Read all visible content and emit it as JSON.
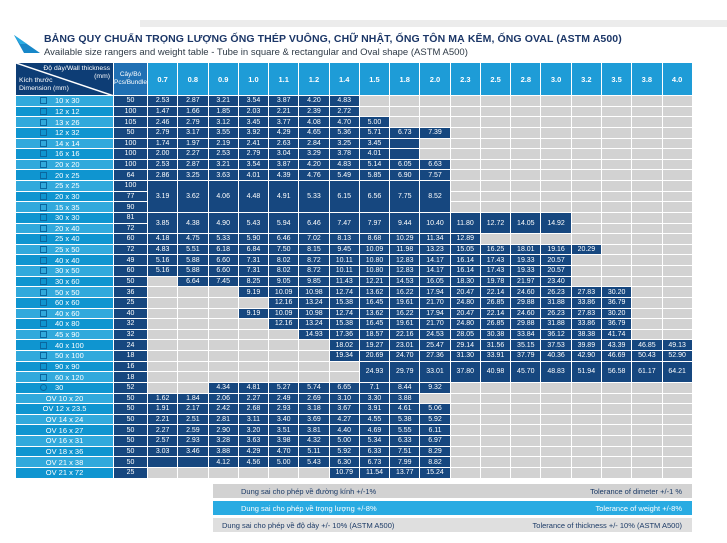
{
  "page": {
    "title": "BẢNG QUY CHUẨN TRỌNG LƯỢNG ỐNG THÉP VUÔNG, CHỮ NHẬT,  ỐNG TÔN MẠ KẼM, ỐNG OVAL (ASTM A500)",
    "subtitle": "Available size rangers and weight table - Tube in square & rectangular and Oval shape (ASTM A500)"
  },
  "colors": {
    "header-cyan": "#1e9cd7",
    "navy": "#16477f",
    "corner-navy": "#0d3d75",
    "bundle-blue": "#2070b4",
    "label-light": "#31a9dc",
    "label-dark": "#0f95d0",
    "empty-gray": "#d2d2d2",
    "footer-gray": "#d2d2d2",
    "footer-light-gray": "#dfdfdf",
    "footer-cyan": "#29abe2",
    "title-navy": "#1b3667",
    "note-text": "#1b3a66"
  },
  "table": {
    "corner": {
      "top_line1": "Độ dày/Wall thickness",
      "top_line2": "(mm)",
      "bottom_line1": "Kích thước",
      "bottom_line2": "Dimension (mm)"
    },
    "bundle_header": {
      "line1": "Cây/Bó",
      "line2": "Pcs/Bundle"
    },
    "thickness_columns": [
      "0.7",
      "0.8",
      "0.9",
      "1.0",
      "1.1",
      "1.2",
      "1.4",
      "1.5",
      "1.8",
      "2.0",
      "2.3",
      "2.5",
      "2.8",
      "3.0",
      "3.2",
      "3.5",
      "3.8",
      "4.0"
    ],
    "groups": [
      {
        "rows": [
          {
            "icon": "square",
            "label": "10 x 30",
            "bundle": "50"
          }
        ],
        "start": 0,
        "values": [
          "2.53",
          "2.87",
          "3.21",
          "3.54",
          "3.87",
          "4.20",
          "4.83"
        ]
      },
      {
        "rows": [
          {
            "icon": "square",
            "label": "12 x 12",
            "bundle": "100"
          }
        ],
        "start": 0,
        "values": [
          "1.47",
          "1.66",
          "1.85",
          "2.03",
          "2.21",
          "2.39",
          "2.72"
        ]
      },
      {
        "rows": [
          {
            "icon": "square",
            "label": "13 x 26",
            "bundle": "105"
          }
        ],
        "start": 0,
        "values": [
          "2.46",
          "2.79",
          "3.12",
          "3.45",
          "3.77",
          "4.08",
          "4.70",
          "5.00"
        ]
      },
      {
        "rows": [
          {
            "icon": "square",
            "label": "12 x 32",
            "bundle": "50"
          }
        ],
        "start": 0,
        "values": [
          "2.79",
          "3.17",
          "3.55",
          "3.92",
          "4.29",
          "4.65",
          "5.36",
          "5.71",
          "6.73",
          "7.39"
        ]
      },
      {
        "rows": [
          {
            "icon": "square",
            "label": "14 x 14",
            "bundle": "100"
          }
        ],
        "start": 0,
        "values": [
          "1.74",
          "1.97",
          "2.19",
          "2.41",
          "2.63",
          "2.84",
          "3.25",
          "3.45",
          ""
        ]
      },
      {
        "rows": [
          {
            "icon": "square",
            "label": "16 x 16",
            "bundle": "100"
          }
        ],
        "start": 0,
        "values": [
          "2.00",
          "2.27",
          "2.53",
          "2.79",
          "3.04",
          "3.29",
          "3.78",
          "4.01",
          ""
        ]
      },
      {
        "rows": [
          {
            "icon": "square",
            "label": "20 x 20",
            "bundle": "100"
          }
        ],
        "start": 0,
        "values": [
          "2.53",
          "2.87",
          "3.21",
          "3.54",
          "3.87",
          "4.20",
          "4.83",
          "5.14",
          "6.05",
          "6.63"
        ]
      },
      {
        "rows": [
          {
            "icon": "square",
            "label": "20 x 25",
            "bundle": "64"
          }
        ],
        "start": 0,
        "values": [
          "2.86",
          "3.25",
          "3.63",
          "4.01",
          "4.39",
          "4.76",
          "5.49",
          "5.85",
          "6.90",
          "7.57"
        ]
      },
      {
        "rows": [
          {
            "icon": "square",
            "label": "25 x 25",
            "bundle": "100"
          },
          {
            "icon": "square",
            "label": "20 x 30",
            "bundle": "77"
          },
          {
            "icon": "square",
            "label": "15 x 35",
            "bundle": "90"
          }
        ],
        "start": 0,
        "values": [
          "3.19",
          "3.62",
          "4.06",
          "4.48",
          "4.91",
          "5.33",
          "6.15",
          "6.56",
          "7.75",
          "8.52"
        ]
      },
      {
        "rows": [
          {
            "icon": "square",
            "label": "30 x 30",
            "bundle": "81"
          },
          {
            "icon": "square",
            "label": "20 x 40",
            "bundle": "72"
          }
        ],
        "start": 0,
        "values": [
          "3.85",
          "4.38",
          "4.90",
          "5.43",
          "5.94",
          "6.46",
          "7.47",
          "7.97",
          "9.44",
          "10.40",
          "11.80",
          "12.72",
          "14.05",
          "14.92"
        ]
      },
      {
        "rows": [
          {
            "icon": "square",
            "label": "25 x 40",
            "bundle": "60"
          }
        ],
        "start": 0,
        "values": [
          "4.18",
          "4.75",
          "5.33",
          "5.90",
          "6.46",
          "7.02",
          "8.13",
          "8.68",
          "10.29",
          "11.34",
          "12.89"
        ]
      },
      {
        "rows": [
          {
            "icon": "square",
            "label": "25 x 50",
            "bundle": "72"
          }
        ],
        "start": 0,
        "values": [
          "4.83",
          "5.51",
          "6.18",
          "6.84",
          "7.50",
          "8.15",
          "9.45",
          "10.09",
          "11.98",
          "13.23",
          "15.05",
          "16.25",
          "18.01",
          "19.16",
          "20.29"
        ]
      },
      {
        "rows": [
          {
            "icon": "square",
            "label": "40 x 40",
            "bundle": "49"
          }
        ],
        "start": 0,
        "values": [
          "5.16",
          "5.88",
          "6.60",
          "7.31",
          "8.02",
          "8.72",
          "10.11",
          "10.80",
          "12.83",
          "14.17",
          "16.14",
          "17.43",
          "19.33",
          "20.57"
        ]
      },
      {
        "rows": [
          {
            "icon": "square",
            "label": "30 x 50",
            "bundle": "60"
          }
        ],
        "start": 0,
        "values": [
          "5.16",
          "5.88",
          "6.60",
          "7.31",
          "8.02",
          "8.72",
          "10.11",
          "10.80",
          "12.83",
          "14.17",
          "16.14",
          "17.43",
          "19.33",
          "20.57"
        ]
      },
      {
        "rows": [
          {
            "icon": "square",
            "label": "30 x 60",
            "bundle": "50"
          }
        ],
        "start": 1,
        "values": [
          "6.64",
          "7.45",
          "8.25",
          "9.05",
          "9.85",
          "11.43",
          "12.21",
          "14.53",
          "16.05",
          "18.30",
          "19.78",
          "21.97",
          "23.40"
        ]
      },
      {
        "rows": [
          {
            "icon": "square",
            "label": "50 x 50",
            "bundle": "36"
          }
        ],
        "start": 3,
        "values": [
          "9.19",
          "10.09",
          "10.98",
          "12.74",
          "13.62",
          "16.22",
          "17.94",
          "20.47",
          "22.14",
          "24.60",
          "26.23",
          "27.83",
          "30.20"
        ]
      },
      {
        "rows": [
          {
            "icon": "square",
            "label": "60 x 60",
            "bundle": "25"
          }
        ],
        "start": 4,
        "values": [
          "12.16",
          "13.24",
          "15.38",
          "16.45",
          "19.61",
          "21.70",
          "24.80",
          "26.85",
          "29.88",
          "31.88",
          "33.86",
          "36.79"
        ]
      },
      {
        "rows": [
          {
            "icon": "square",
            "label": "40 x 60",
            "bundle": "40"
          }
        ],
        "start": 3,
        "values": [
          "9.19",
          "10.09",
          "10.98",
          "12.74",
          "13.62",
          "16.22",
          "17.94",
          "20.47",
          "22.14",
          "24.60",
          "26.23",
          "27.83",
          "30.20"
        ]
      },
      {
        "rows": [
          {
            "icon": "square",
            "label": "40 x 80",
            "bundle": "32"
          }
        ],
        "start": 4,
        "values": [
          "12.16",
          "13.24",
          "15.38",
          "16.45",
          "19.61",
          "21.70",
          "24.80",
          "26.85",
          "29.88",
          "31.88",
          "33.86",
          "36.79"
        ]
      },
      {
        "rows": [
          {
            "icon": "square",
            "label": "45 x 90",
            "bundle": "32"
          }
        ],
        "start": 5,
        "values": [
          "14.93",
          "17.36",
          "18.57",
          "22.16",
          "24.53",
          "28.05",
          "30.38",
          "33.84",
          "36.12",
          "38.38",
          "41.74"
        ]
      },
      {
        "rows": [
          {
            "icon": "square",
            "label": "40 x 100",
            "bundle": "24"
          }
        ],
        "start": 6,
        "values": [
          "18.02",
          "19.27",
          "23.01",
          "25.47",
          "29.14",
          "31.56",
          "35.15",
          "37.53",
          "39.89",
          "43.39",
          "46.85",
          "49.13"
        ]
      },
      {
        "rows": [
          {
            "icon": "square",
            "label": "50 x 100",
            "bundle": "18"
          }
        ],
        "start": 6,
        "values": [
          "19.34",
          "20.69",
          "24.70",
          "27.36",
          "31.30",
          "33.91",
          "37.79",
          "40.36",
          "42.90",
          "46.69",
          "50.43",
          "52.90"
        ]
      },
      {
        "rows": [
          {
            "icon": "square",
            "label": "90 x 90",
            "bundle": "16"
          },
          {
            "icon": "square",
            "label": "60 x 120",
            "bundle": "18"
          }
        ],
        "start": 7,
        "values": [
          "24.93",
          "29.79",
          "33.01",
          "37.80",
          "40.98",
          "45.70",
          "48.83",
          "51.94",
          "56.58",
          "61.17",
          "64.21"
        ]
      },
      {
        "rows": [
          {
            "icon": "circle",
            "label": "30",
            "bundle": "52"
          }
        ],
        "start": 2,
        "values": [
          "4.34",
          "4.81",
          "5.27",
          "5.74",
          "6.65",
          "7.1",
          "8.44",
          "9.32"
        ]
      },
      {
        "rows": [
          {
            "icon": "none",
            "label": "OV 10 x 20",
            "bundle": "50"
          }
        ],
        "start": 0,
        "values": [
          "1.62",
          "1.84",
          "2.06",
          "2.27",
          "2.49",
          "2.69",
          "3.10",
          "3.30",
          "3.88"
        ]
      },
      {
        "rows": [
          {
            "icon": "none",
            "label": "OV 12 x 23.5",
            "bundle": "50"
          }
        ],
        "start": 0,
        "values": [
          "1.91",
          "2.17",
          "2.42",
          "2.68",
          "2.93",
          "3.18",
          "3.67",
          "3.91",
          "4.61",
          "5.06"
        ]
      },
      {
        "rows": [
          {
            "icon": "none",
            "label": "OV 14 x 24",
            "bundle": "50"
          }
        ],
        "start": 0,
        "values": [
          "2.21",
          "2.51",
          "2.81",
          "3.11",
          "3.40",
          "3.69",
          "4.27",
          "4.55",
          "5.38",
          "5.92"
        ]
      },
      {
        "rows": [
          {
            "icon": "none",
            "label": "OV 16 x 27",
            "bundle": "50"
          }
        ],
        "start": 0,
        "values": [
          "2.27",
          "2.59",
          "2.90",
          "3.20",
          "3.51",
          "3.81",
          "4.40",
          "4.69",
          "5.55",
          "6.11"
        ]
      },
      {
        "rows": [
          {
            "icon": "none",
            "label": "OV 16 x 31",
            "bundle": "50"
          }
        ],
        "start": 0,
        "values": [
          "2.57",
          "2.93",
          "3.28",
          "3.63",
          "3.98",
          "4.32",
          "5.00",
          "5.34",
          "6.33",
          "6.97"
        ]
      },
      {
        "rows": [
          {
            "icon": "none",
            "label": "OV 18 x 36",
            "bundle": "50"
          }
        ],
        "start": 0,
        "values": [
          "3.03",
          "3.46",
          "3.88",
          "4.29",
          "4.70",
          "5.11",
          "5.92",
          "6.33",
          "7.51",
          "8.29"
        ]
      },
      {
        "rows": [
          {
            "icon": "none",
            "label": "OV 21 x 38",
            "bundle": "50"
          }
        ],
        "start": 0,
        "values": [
          "",
          "",
          "4.12",
          "4.56",
          "5.00",
          "5.43",
          "6.30",
          "6.73",
          "7.99",
          "8.82"
        ]
      },
      {
        "rows": [
          {
            "icon": "none",
            "label": "OV 21 x 72",
            "bundle": "25"
          }
        ],
        "start": 6,
        "values": [
          "10.79",
          "11.54",
          "13.77",
          "15.24"
        ]
      }
    ]
  },
  "footer": {
    "notes": [
      {
        "vn": "Dung sai cho phép về đường kính +/-1%",
        "en": "Tolerance of dimeter +/-1 %",
        "variant": "gray"
      },
      {
        "vn": "Dung sai cho phép về trọng lượng +/-8%",
        "en": "Tolerance of weight +/-8%",
        "variant": "cyan"
      },
      {
        "vn": "Dung sai cho phép về độ dày +/- 10% (ASTM A500)",
        "en": "Tolerance of thickness +/- 10% (ASTM A500)",
        "variant": "lgray"
      }
    ]
  }
}
